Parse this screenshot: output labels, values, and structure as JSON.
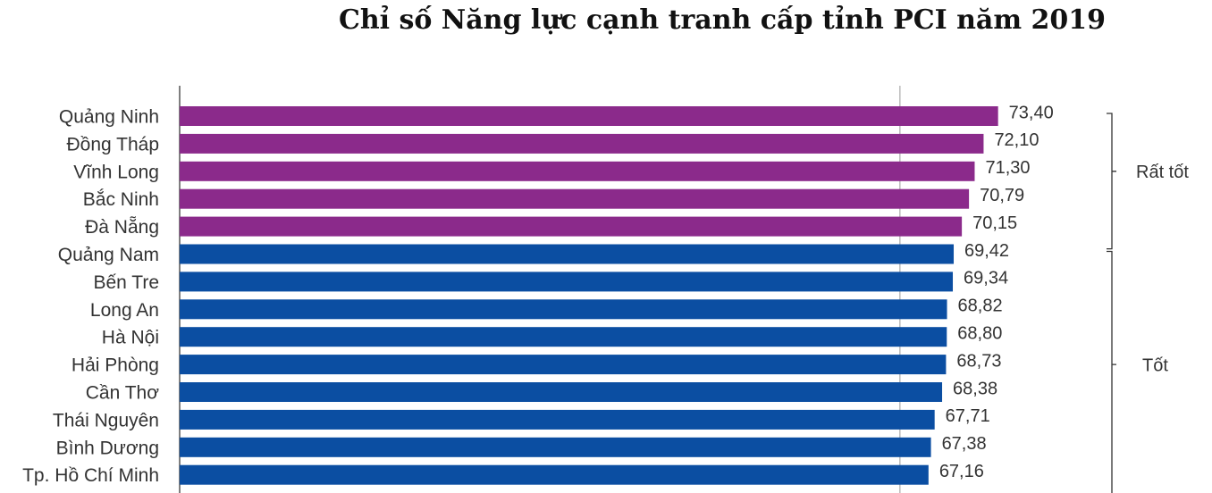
{
  "chart_data": {
    "type": "bar",
    "orientation": "horizontal",
    "title": "Chỉ số Năng lực cạnh tranh cấp tỉnh PCI năm 2019",
    "categories": [
      "Quảng Ninh",
      "Đồng Tháp",
      "Vĩnh Long",
      "Bắc Ninh",
      "Đà Nẵng",
      "Quảng Nam",
      "Bến Tre",
      "Long An",
      "Hà Nội",
      "Hải Phòng",
      "Cần Thơ",
      "Thái Nguyên",
      "Bình Dương",
      "Tp. Hồ Chí Minh"
    ],
    "series": [
      {
        "name": "Rất tốt",
        "color": "#8b2a8b",
        "values": [
          73.4,
          72.1,
          71.3,
          70.79,
          70.15,
          null,
          null,
          null,
          null,
          null,
          null,
          null,
          null,
          null
        ],
        "value_labels": [
          "73,40",
          "72,10",
          "71,30",
          "70,79",
          "70,15",
          null,
          null,
          null,
          null,
          null,
          null,
          null,
          null,
          null
        ]
      },
      {
        "name": "Tốt",
        "color": "#0b4ea2",
        "values": [
          null,
          null,
          null,
          null,
          null,
          69.42,
          69.34,
          68.82,
          68.8,
          68.73,
          68.38,
          67.71,
          67.38,
          67.16
        ],
        "value_labels": [
          null,
          null,
          null,
          null,
          null,
          "69,42",
          "69,34",
          "68,82",
          "68,80",
          "68,73",
          "68,38",
          "67,71",
          "67,38",
          "67,16"
        ]
      }
    ],
    "xlim": [
      0,
      80
    ],
    "reference_line": 64.6
  }
}
